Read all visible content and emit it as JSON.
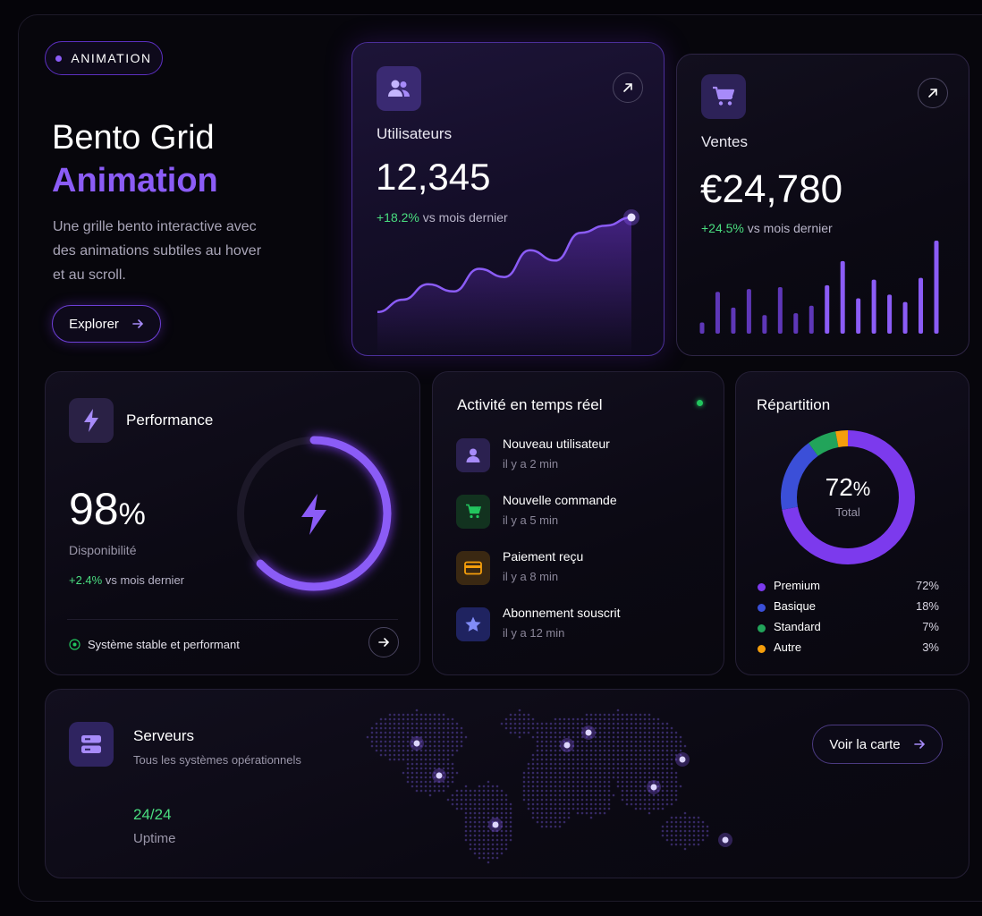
{
  "badge": {
    "label": "ANIMATION"
  },
  "hero": {
    "title_line1": "Bento Grid",
    "title_line2": "Animation",
    "description_line1": "Une grille bento interactive avec",
    "description_line2": "des animations subtiles au hover",
    "description_line3": "et au scroll.",
    "cta_label": "Explorer"
  },
  "users_card": {
    "label": "Utilisateurs",
    "value": "12,345",
    "change": "+18.2%",
    "change_suffix": "vs mois dernier",
    "icon": "users-icon",
    "chart_points": [
      8,
      20,
      35,
      28,
      50,
      42,
      68,
      58,
      85,
      92,
      100
    ]
  },
  "sales_card": {
    "label": "Ventes",
    "value": "€24,780",
    "change": "+24.5%",
    "change_suffix": "vs mois dernier",
    "icon": "cart-icon",
    "bars": [
      12,
      45,
      28,
      48,
      20,
      50,
      22,
      30,
      52,
      78,
      38,
      58,
      42,
      34,
      60,
      100
    ]
  },
  "performance_card": {
    "title": "Performance",
    "value": "98",
    "unit": "%",
    "label": "Disponibilité",
    "change": "+2.4%",
    "change_suffix": "vs mois dernier",
    "status": "Système stable et performant",
    "progress": 0.98
  },
  "activity_card": {
    "title": "Activité en temps réel",
    "items": [
      {
        "title": "Nouveau utilisateur",
        "time": "il y a 2 min",
        "icon": "user-icon",
        "color": "#8b5cf6",
        "bg": "#2b2150"
      },
      {
        "title": "Nouvelle commande",
        "time": "il y a 5 min",
        "icon": "cart-icon",
        "color": "#22c55e",
        "bg": "#12321f"
      },
      {
        "title": "Paiement reçu",
        "time": "il y a 8 min",
        "icon": "credit-card-icon",
        "color": "#f59e0b",
        "bg": "#3a2812"
      },
      {
        "title": "Abonnement souscrit",
        "time": "il y a 12 min",
        "icon": "star-icon",
        "color": "#6366f1",
        "bg": "#1f2360"
      }
    ]
  },
  "repartition_card": {
    "title": "Répartition",
    "center_value": "72",
    "center_unit": "%",
    "center_label": "Total",
    "segments": [
      {
        "name": "Premium",
        "value": "72%",
        "fraction": 0.72,
        "color": "#7c3aed"
      },
      {
        "name": "Basique",
        "value": "18%",
        "fraction": 0.18,
        "color": "#3b4fd8"
      },
      {
        "name": "Standard",
        "value": "7%",
        "fraction": 0.07,
        "color": "#22a45a"
      },
      {
        "name": "Autre",
        "value": "3%",
        "fraction": 0.03,
        "color": "#f59e0b"
      }
    ]
  },
  "servers_card": {
    "title": "Serveurs",
    "subtitle": "Tous les systèmes opérationnels",
    "uptime_value": "24/24",
    "uptime_label": "Uptime",
    "cta_label": "Voir la carte"
  },
  "colors": {
    "accent": "#8b5cf6",
    "accent_light": "#a78bfa",
    "positive": "#4ade80"
  }
}
